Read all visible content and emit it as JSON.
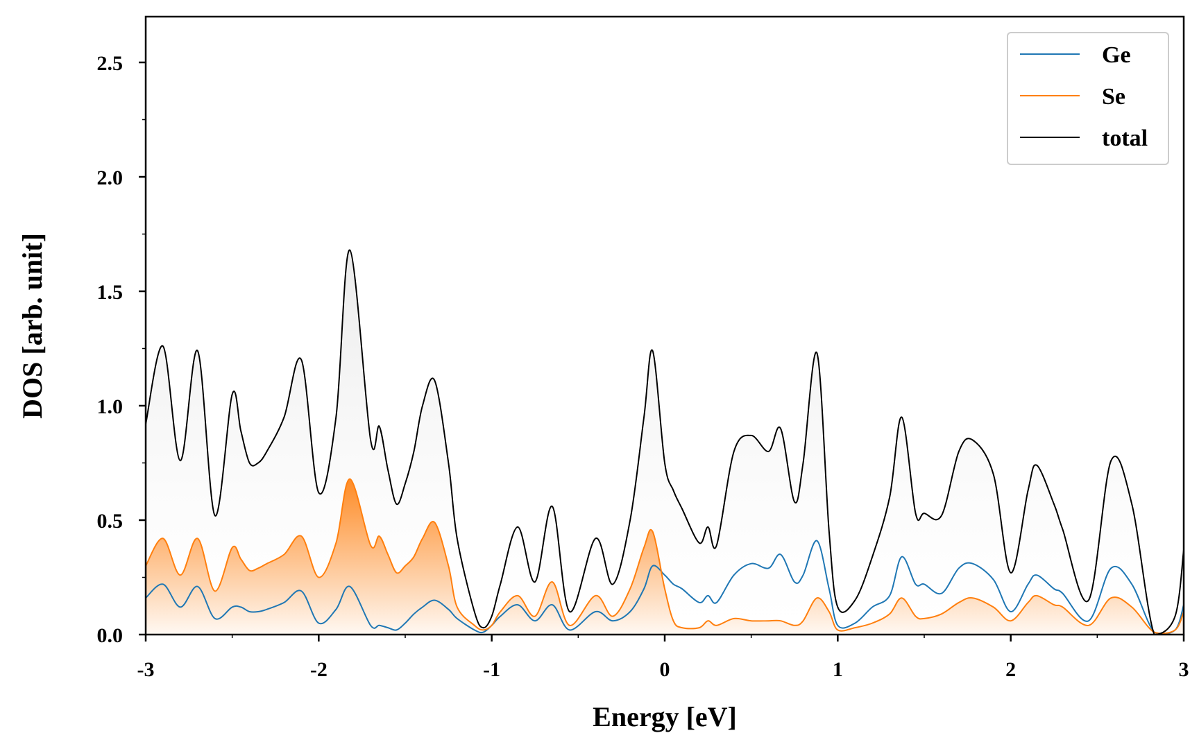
{
  "chart_data": {
    "type": "line",
    "xlabel": "Energy [eV]",
    "ylabel": "DOS [arb. unit]",
    "xlim": [
      -3,
      3
    ],
    "ylim": [
      0,
      2.7
    ],
    "xticks": [
      -3,
      -2,
      -1,
      0,
      1,
      2,
      3
    ],
    "xtick_labels": [
      "-3",
      "-2",
      "-1",
      "0",
      "1",
      "2",
      "3"
    ],
    "yticks": [
      0,
      0.5,
      1,
      1.5,
      2,
      2.5
    ],
    "ytick_labels": [
      "0.0",
      "0.5",
      "1.0",
      "1.5",
      "2.0",
      "2.5"
    ],
    "legend": {
      "placement": "top-right",
      "entries": [
        "Ge",
        "Se",
        "total"
      ]
    },
    "colors": {
      "Ge": "#1f77b4",
      "Se": "#ff7f0e",
      "total": "#000000"
    },
    "fill_under": [
      "Se",
      "total"
    ],
    "x": [
      -3.0,
      -2.9,
      -2.8,
      -2.7,
      -2.6,
      -2.5,
      -2.45,
      -2.4,
      -2.35,
      -2.3,
      -2.2,
      -2.1,
      -2.0,
      -1.9,
      -1.82,
      -1.7,
      -1.65,
      -1.6,
      -1.55,
      -1.5,
      -1.45,
      -1.4,
      -1.33,
      -1.25,
      -1.2,
      -1.1,
      -1.05,
      -1.0,
      -0.95,
      -0.85,
      -0.75,
      -0.65,
      -0.55,
      -0.4,
      -0.3,
      -0.2,
      -0.12,
      -0.07,
      0.0,
      0.05,
      0.1,
      0.2,
      0.25,
      0.3,
      0.4,
      0.5,
      0.6,
      0.67,
      0.75,
      0.8,
      0.88,
      0.95,
      1.0,
      1.1,
      1.2,
      1.3,
      1.37,
      1.45,
      1.5,
      1.6,
      1.7,
      1.78,
      1.9,
      2.0,
      2.1,
      2.15,
      2.25,
      2.3,
      2.45,
      2.58,
      2.7,
      2.83,
      2.95,
      3.0
    ],
    "series": [
      {
        "name": "Ge",
        "values": [
          0.16,
          0.22,
          0.12,
          0.21,
          0.07,
          0.12,
          0.12,
          0.1,
          0.1,
          0.11,
          0.14,
          0.19,
          0.05,
          0.11,
          0.21,
          0.04,
          0.04,
          0.03,
          0.02,
          0.05,
          0.09,
          0.12,
          0.15,
          0.11,
          0.07,
          0.02,
          0.01,
          0.04,
          0.08,
          0.13,
          0.06,
          0.13,
          0.02,
          0.1,
          0.06,
          0.1,
          0.2,
          0.3,
          0.26,
          0.22,
          0.2,
          0.14,
          0.17,
          0.14,
          0.26,
          0.31,
          0.29,
          0.35,
          0.23,
          0.26,
          0.41,
          0.2,
          0.04,
          0.05,
          0.12,
          0.17,
          0.34,
          0.22,
          0.22,
          0.18,
          0.29,
          0.31,
          0.24,
          0.1,
          0.22,
          0.26,
          0.2,
          0.18,
          0.06,
          0.29,
          0.22,
          0.01,
          0.02,
          0.13
        ]
      },
      {
        "name": "Se",
        "values": [
          0.3,
          0.42,
          0.26,
          0.42,
          0.19,
          0.38,
          0.33,
          0.28,
          0.29,
          0.31,
          0.35,
          0.43,
          0.25,
          0.4,
          0.68,
          0.39,
          0.43,
          0.35,
          0.27,
          0.3,
          0.34,
          0.42,
          0.49,
          0.3,
          0.12,
          0.04,
          0.02,
          0.04,
          0.1,
          0.17,
          0.08,
          0.23,
          0.04,
          0.17,
          0.08,
          0.2,
          0.38,
          0.45,
          0.2,
          0.06,
          0.03,
          0.03,
          0.06,
          0.04,
          0.07,
          0.06,
          0.06,
          0.06,
          0.04,
          0.06,
          0.16,
          0.1,
          0.02,
          0.03,
          0.05,
          0.09,
          0.16,
          0.08,
          0.07,
          0.09,
          0.14,
          0.16,
          0.12,
          0.06,
          0.14,
          0.17,
          0.13,
          0.12,
          0.04,
          0.16,
          0.12,
          0.01,
          0.02,
          0.1
        ]
      },
      {
        "name": "total",
        "values": [
          0.92,
          1.26,
          0.76,
          1.24,
          0.52,
          1.05,
          0.89,
          0.75,
          0.75,
          0.8,
          0.95,
          1.2,
          0.62,
          0.95,
          1.68,
          0.85,
          0.91,
          0.72,
          0.57,
          0.66,
          0.8,
          1.0,
          1.11,
          0.75,
          0.42,
          0.1,
          0.03,
          0.08,
          0.22,
          0.47,
          0.23,
          0.56,
          0.1,
          0.42,
          0.22,
          0.5,
          0.95,
          1.24,
          0.75,
          0.63,
          0.55,
          0.4,
          0.47,
          0.39,
          0.8,
          0.87,
          0.8,
          0.9,
          0.58,
          0.75,
          1.23,
          0.45,
          0.12,
          0.15,
          0.34,
          0.6,
          0.95,
          0.53,
          0.53,
          0.52,
          0.8,
          0.85,
          0.7,
          0.27,
          0.63,
          0.74,
          0.57,
          0.46,
          0.15,
          0.76,
          0.57,
          0.0,
          0.08,
          0.37
        ]
      }
    ]
  }
}
